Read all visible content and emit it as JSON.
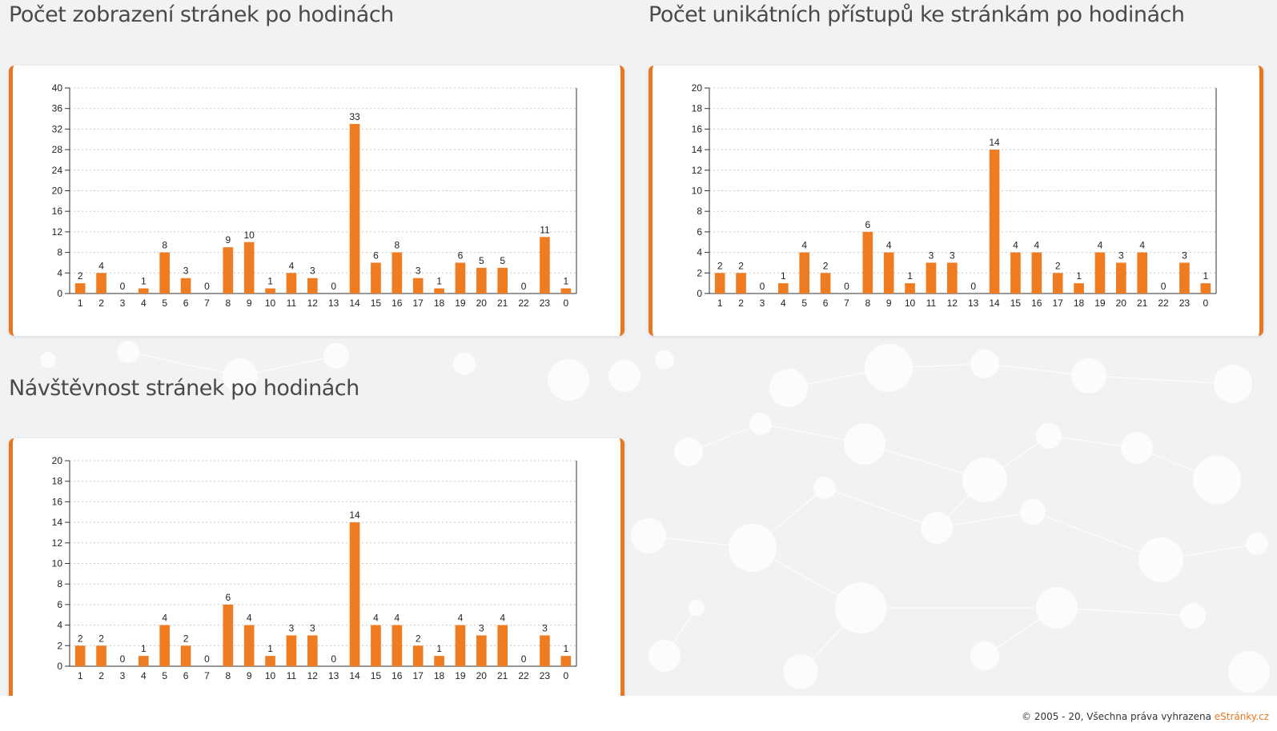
{
  "sections": [
    {
      "title": "Počet zobrazení stránek po hodinách"
    },
    {
      "title": "Počet unikátních přístupů ke stránkám po hodinách"
    },
    {
      "title": "Návštěvnost stránek po hodinách"
    }
  ],
  "footer": {
    "text": "© 2005 - 20, Všechna práva vyhrazena ",
    "link_label": "eStránky.cz"
  },
  "colors": {
    "accent": "#e87722",
    "bar": "#f07c22",
    "background": "#f1f2f4"
  },
  "chart_data": [
    {
      "type": "bar",
      "categories": [
        "1",
        "2",
        "3",
        "4",
        "5",
        "6",
        "7",
        "8",
        "9",
        "10",
        "11",
        "12",
        "13",
        "14",
        "15",
        "16",
        "17",
        "18",
        "19",
        "20",
        "21",
        "22",
        "23",
        "0"
      ],
      "values": [
        2,
        4,
        0,
        1,
        8,
        3,
        0,
        9,
        10,
        1,
        4,
        3,
        0,
        33,
        6,
        8,
        3,
        1,
        6,
        5,
        5,
        0,
        11,
        1
      ],
      "ylim": [
        0,
        40
      ],
      "yticks": [
        0,
        4,
        8,
        12,
        16,
        20,
        24,
        28,
        32,
        36,
        40
      ],
      "grid": true,
      "data_labels": true
    },
    {
      "type": "bar",
      "categories": [
        "1",
        "2",
        "3",
        "4",
        "5",
        "6",
        "7",
        "8",
        "9",
        "10",
        "11",
        "12",
        "13",
        "14",
        "15",
        "16",
        "17",
        "18",
        "19",
        "20",
        "21",
        "22",
        "23",
        "0"
      ],
      "values": [
        2,
        2,
        0,
        1,
        4,
        2,
        0,
        6,
        4,
        1,
        3,
        3,
        0,
        14,
        4,
        4,
        2,
        1,
        4,
        3,
        4,
        0,
        3,
        1
      ],
      "ylim": [
        0,
        20
      ],
      "yticks": [
        0,
        2,
        4,
        6,
        8,
        10,
        12,
        14,
        16,
        18,
        20
      ],
      "grid": true,
      "data_labels": true
    },
    {
      "type": "bar",
      "categories": [
        "1",
        "2",
        "3",
        "4",
        "5",
        "6",
        "7",
        "8",
        "9",
        "10",
        "11",
        "12",
        "13",
        "14",
        "15",
        "16",
        "17",
        "18",
        "19",
        "20",
        "21",
        "22",
        "23",
        "0"
      ],
      "values": [
        2,
        2,
        0,
        1,
        4,
        2,
        0,
        6,
        4,
        1,
        3,
        3,
        0,
        14,
        4,
        4,
        2,
        1,
        4,
        3,
        4,
        0,
        3,
        1
      ],
      "ylim": [
        0,
        20
      ],
      "yticks": [
        0,
        2,
        4,
        6,
        8,
        10,
        12,
        14,
        16,
        18,
        20
      ],
      "grid": true,
      "data_labels": true
    }
  ]
}
